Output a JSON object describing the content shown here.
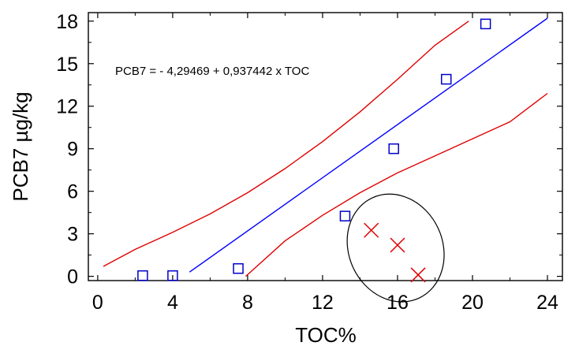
{
  "chart_data": {
    "type": "scatter",
    "xlabel": "TOC%",
    "ylabel": "PCB7 µg/kg",
    "xlim": [
      -0.5,
      24.8
    ],
    "ylim": [
      -0.3,
      18.6
    ],
    "xticks": [
      0,
      4,
      8,
      12,
      16,
      20,
      24
    ],
    "yticks": [
      0,
      3,
      6,
      9,
      12,
      15,
      18
    ],
    "x_tick_labels": [
      "0",
      "4",
      "8",
      "12",
      "16",
      "20",
      "24"
    ],
    "y_tick_labels": [
      "0",
      "3",
      "6",
      "9",
      "12",
      "15",
      "18"
    ],
    "grid": false,
    "annotation": "PCB7 = - 4,29469 + 0,937442 x TOC",
    "colors": {
      "points": "#0000cc",
      "fit": "#0000ff",
      "bands": "#e00000",
      "outliers": "#e00000",
      "ellipse": "#000000"
    },
    "points": [
      {
        "x": 2.4,
        "y": 0.05
      },
      {
        "x": 4.0,
        "y": 0.05
      },
      {
        "x": 7.5,
        "y": 0.55
      },
      {
        "x": 13.2,
        "y": 4.25
      },
      {
        "x": 15.8,
        "y": 9.0
      },
      {
        "x": 18.6,
        "y": 13.9
      },
      {
        "x": 20.7,
        "y": 17.8
      }
    ],
    "excluded_points": [
      {
        "x": 14.6,
        "y": 3.25
      },
      {
        "x": 16.0,
        "y": 2.2
      },
      {
        "x": 17.1,
        "y": 0.1
      }
    ],
    "regression": {
      "intercept": -4.29469,
      "slope": 0.937442,
      "x_range": [
        4.9,
        24.0
      ]
    },
    "confidence_upper": [
      [
        0.3,
        0.7
      ],
      [
        2.0,
        1.9
      ],
      [
        4.0,
        3.1
      ],
      [
        6.0,
        4.4
      ],
      [
        8.0,
        5.9
      ],
      [
        10.0,
        7.6
      ],
      [
        12.0,
        9.5
      ],
      [
        14.0,
        11.6
      ],
      [
        16.0,
        13.9
      ],
      [
        18.0,
        16.3
      ],
      [
        19.8,
        18.0
      ]
    ],
    "confidence_lower": [
      [
        7.9,
        0.0
      ],
      [
        10.0,
        2.5
      ],
      [
        12.0,
        4.3
      ],
      [
        14.0,
        5.9
      ],
      [
        16.0,
        7.3
      ],
      [
        18.0,
        8.5
      ],
      [
        20.0,
        9.7
      ],
      [
        22.0,
        10.9
      ],
      [
        24.0,
        12.9
      ]
    ],
    "ellipse": {
      "cx": 15.9,
      "cy": 2.0,
      "rx": 2.5,
      "ry": 3.9,
      "rotation_deg": -25
    }
  }
}
